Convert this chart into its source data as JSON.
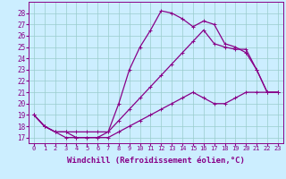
{
  "bg_color": "#cceeff",
  "grid_color": "#99cccc",
  "line_color": "#880088",
  "markersize": 3,
  "linewidth": 0.9,
  "xlabel": "Windchill (Refroidissement éolien,°C)",
  "xlabel_fontsize": 6.5,
  "xtick_fontsize": 5,
  "ytick_fontsize": 5.5,
  "xlim": [
    -0.5,
    23.5
  ],
  "ylim": [
    16.5,
    29.0
  ],
  "xticks": [
    0,
    1,
    2,
    3,
    4,
    5,
    6,
    7,
    8,
    9,
    10,
    11,
    12,
    13,
    14,
    15,
    16,
    17,
    18,
    19,
    20,
    21,
    22,
    23
  ],
  "yticks": [
    17,
    18,
    19,
    20,
    21,
    22,
    23,
    24,
    25,
    26,
    27,
    28
  ],
  "curve1_x": [
    0,
    1,
    2,
    3,
    4,
    5,
    6,
    7,
    8,
    9,
    10,
    11,
    12,
    13,
    14,
    15,
    16,
    17,
    18,
    19,
    20,
    21,
    22,
    23
  ],
  "curve1_y": [
    19,
    18,
    17.5,
    17,
    17,
    17,
    17,
    17.5,
    20,
    23,
    25,
    26.5,
    28.2,
    28.0,
    27.5,
    26.8,
    27.3,
    27.0,
    25.3,
    25.0,
    24.5,
    23.0,
    21.0,
    21.0
  ],
  "curve2_x": [
    0,
    1,
    2,
    3,
    4,
    5,
    6,
    7,
    8,
    9,
    10,
    11,
    12,
    13,
    14,
    15,
    16,
    17,
    18,
    19,
    20,
    21,
    22,
    23
  ],
  "curve2_y": [
    19,
    18,
    17.5,
    17.5,
    17.5,
    17.5,
    17.5,
    17.5,
    18.5,
    19.5,
    20.5,
    21.5,
    22.5,
    23.5,
    24.5,
    25.5,
    26.5,
    25.3,
    25.0,
    24.8,
    24.8,
    23.0,
    21.0,
    21.0
  ],
  "curve3_x": [
    0,
    1,
    2,
    3,
    4,
    5,
    6,
    7,
    8,
    9,
    10,
    11,
    12,
    13,
    14,
    15,
    16,
    17,
    18,
    19,
    20,
    21,
    22,
    23
  ],
  "curve3_y": [
    19,
    18,
    17.5,
    17.5,
    17.0,
    17.0,
    17.0,
    17.0,
    17.5,
    18.0,
    18.5,
    19.0,
    19.5,
    20.0,
    20.5,
    21.0,
    20.5,
    20.0,
    20.0,
    20.5,
    21.0,
    21.0,
    21.0,
    21.0
  ]
}
